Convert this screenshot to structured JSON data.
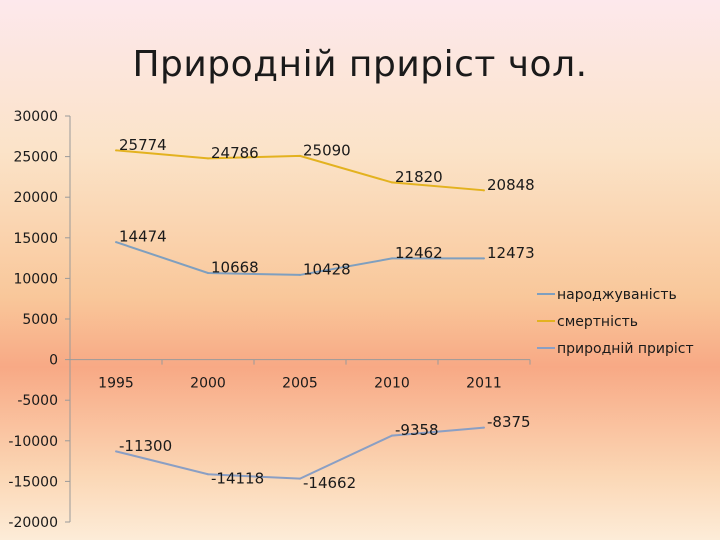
{
  "title": "Природній приріст чол.",
  "chart_data": {
    "type": "line",
    "categories": [
      "1995",
      "2000",
      "2005",
      "2010",
      "2011"
    ],
    "series": [
      {
        "name": "народжуваність",
        "values": [
          14474,
          10668,
          10428,
          12462,
          12473
        ],
        "color": "#7f9fbf"
      },
      {
        "name": "смертність",
        "values": [
          25774,
          24786,
          25090,
          21820,
          20848
        ],
        "color": "#e3b21f"
      },
      {
        "name": "природній приріст",
        "values": [
          -11300,
          -14118,
          -14662,
          -9358,
          -8375
        ],
        "color": "#8a9fc4"
      }
    ],
    "ylim": [
      -20000,
      30000
    ],
    "yticks": [
      "30000",
      "25000",
      "20000",
      "15000",
      "10000",
      "5000",
      "0",
      "-5000",
      "-10000",
      "-15000",
      "-20000"
    ],
    "grid": false,
    "legend_position": "right",
    "xlabel": "",
    "ylabel": ""
  }
}
